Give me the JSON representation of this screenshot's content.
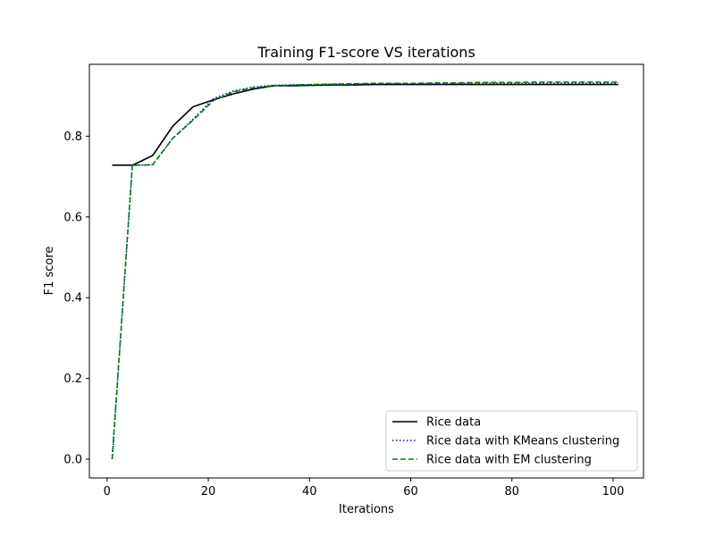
{
  "chart_data": {
    "type": "line",
    "title": "Training F1-score VS iterations",
    "xlabel": "Iterations",
    "ylabel": "F1 score",
    "xlim": [
      -3.5,
      106
    ],
    "ylim": [
      -0.0465,
      0.978
    ],
    "xticks": [
      0,
      20,
      40,
      60,
      80,
      100
    ],
    "yticks": [
      0.0,
      0.2,
      0.4,
      0.6,
      0.8
    ],
    "ytick_labels": [
      "0.0",
      "0.2",
      "0.4",
      "0.6",
      "0.8"
    ],
    "grid": false,
    "legend_position": "lower-right",
    "x": [
      1,
      5,
      9,
      13,
      17,
      21,
      25,
      29,
      33,
      37,
      41,
      45,
      49,
      53,
      57,
      61,
      65,
      69,
      73,
      77,
      81,
      85,
      89,
      93,
      97,
      101
    ],
    "series": [
      {
        "name": "Rice data",
        "color": "#000000",
        "style": "solid",
        "values": [
          0.728,
          0.728,
          0.752,
          0.825,
          0.873,
          0.89,
          0.905,
          0.917,
          0.925,
          0.925,
          0.926,
          0.927,
          0.927,
          0.928,
          0.928,
          0.928,
          0.928,
          0.928,
          0.928,
          0.928,
          0.928,
          0.928,
          0.928,
          0.928,
          0.928,
          0.928
        ]
      },
      {
        "name": "Rice data with KMeans clustering",
        "color": "#0000ff",
        "style": "dotted",
        "values": [
          0.0,
          0.728,
          0.729,
          0.795,
          0.842,
          0.893,
          0.912,
          0.922,
          0.926,
          0.927,
          0.928,
          0.929,
          0.929,
          0.93,
          0.93,
          0.93,
          0.93,
          0.93,
          0.931,
          0.931,
          0.931,
          0.931,
          0.931,
          0.931,
          0.931,
          0.931
        ]
      },
      {
        "name": "Rice data with EM clustering",
        "color": "#008000",
        "style": "dashed",
        "values": [
          0.0,
          0.728,
          0.729,
          0.795,
          0.84,
          0.888,
          0.91,
          0.92,
          0.925,
          0.927,
          0.928,
          0.929,
          0.93,
          0.931,
          0.931,
          0.931,
          0.932,
          0.932,
          0.933,
          0.933,
          0.933,
          0.934,
          0.934,
          0.934,
          0.934,
          0.934
        ]
      }
    ]
  }
}
